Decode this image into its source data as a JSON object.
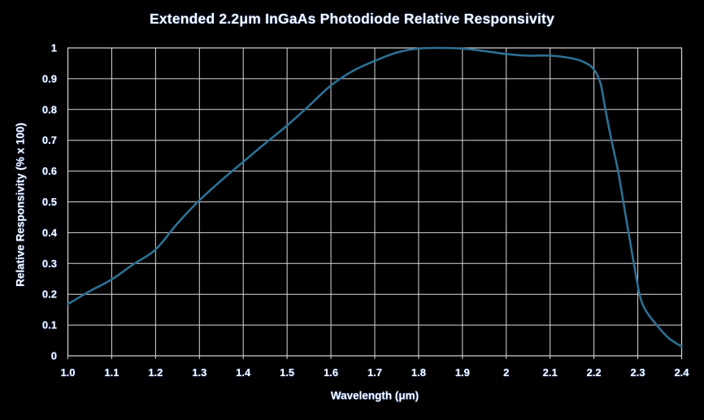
{
  "chart_data": {
    "type": "line",
    "title": "Extended 2.2μm InGaAs Photodiode Relative Responsivity",
    "xlabel": "Wavelength (μm)",
    "ylabel": "Relative Responsivity (% x 100)",
    "xlim": [
      1.0,
      2.4
    ],
    "ylim": [
      0,
      1
    ],
    "grid": true,
    "legend": "none",
    "colors": {
      "background": "#000000",
      "grid": "#d9d9d9",
      "text": "#ffffff",
      "line": "#2d7094"
    },
    "x_tick_values": [
      1.0,
      1.1,
      1.2,
      1.3,
      1.4,
      1.5,
      1.6,
      1.7,
      1.8,
      1.9,
      2.0,
      2.1,
      2.2,
      2.3,
      2.4
    ],
    "x_tick_labels": [
      "1.0",
      "1.1",
      "1.2",
      "1.3",
      "1.4",
      "1.5",
      "1.6",
      "1.7",
      "1.8",
      "1.9",
      "2",
      "2.1",
      "2.2",
      "2.3",
      "2.4"
    ],
    "y_tick_values": [
      0,
      0.1,
      0.2,
      0.3,
      0.4,
      0.5,
      0.6,
      0.7,
      0.8,
      0.9,
      1.0
    ],
    "y_tick_labels": [
      "0",
      "0.1",
      "0.2",
      "0.3",
      "0.4",
      "0.5",
      "0.6",
      "0.7",
      "0.8",
      "0.9",
      "1"
    ],
    "series": [
      {
        "name": "Relative Responsivity",
        "points": [
          [
            1.0,
            0.168
          ],
          [
            1.05,
            0.21
          ],
          [
            1.1,
            0.248
          ],
          [
            1.15,
            0.298
          ],
          [
            1.2,
            0.345
          ],
          [
            1.25,
            0.43
          ],
          [
            1.3,
            0.505
          ],
          [
            1.35,
            0.57
          ],
          [
            1.4,
            0.63
          ],
          [
            1.45,
            0.69
          ],
          [
            1.5,
            0.748
          ],
          [
            1.55,
            0.812
          ],
          [
            1.6,
            0.878
          ],
          [
            1.65,
            0.925
          ],
          [
            1.7,
            0.958
          ],
          [
            1.75,
            0.985
          ],
          [
            1.8,
            0.998
          ],
          [
            1.85,
            1.0
          ],
          [
            1.9,
            0.998
          ],
          [
            1.95,
            0.99
          ],
          [
            2.0,
            0.98
          ],
          [
            2.05,
            0.975
          ],
          [
            2.1,
            0.975
          ],
          [
            2.15,
            0.966
          ],
          [
            2.18,
            0.952
          ],
          [
            2.2,
            0.93
          ],
          [
            2.215,
            0.885
          ],
          [
            2.226,
            0.8
          ],
          [
            2.24,
            0.7
          ],
          [
            2.255,
            0.6
          ],
          [
            2.267,
            0.5
          ],
          [
            2.279,
            0.4
          ],
          [
            2.291,
            0.3
          ],
          [
            2.304,
            0.2
          ],
          [
            2.317,
            0.15
          ],
          [
            2.343,
            0.1
          ],
          [
            2.37,
            0.058
          ],
          [
            2.4,
            0.03
          ]
        ]
      }
    ]
  }
}
